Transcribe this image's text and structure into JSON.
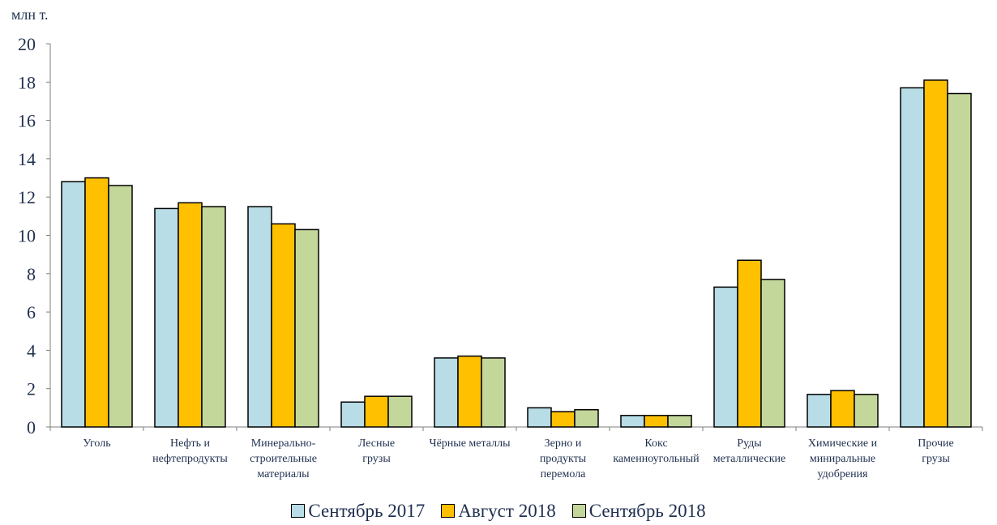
{
  "chart_data": {
    "type": "bar",
    "ylabel": "млн т.",
    "ylim": [
      0,
      20
    ],
    "yticks": [
      0,
      2,
      4,
      6,
      8,
      10,
      12,
      14,
      16,
      18,
      20
    ],
    "grid": false,
    "legend_position": "bottom",
    "categories": [
      [
        "Уголь"
      ],
      [
        "Нефть и",
        "нефтепродукты"
      ],
      [
        "Минерально-",
        "строительные",
        "материалы"
      ],
      [
        "Лесные",
        "грузы"
      ],
      [
        "Чёрные металлы"
      ],
      [
        "Зерно и",
        "продукты",
        "перемола"
      ],
      [
        "Кокс",
        "каменноугольный"
      ],
      [
        "Руды",
        "металлические"
      ],
      [
        "Химические и",
        "миниральные",
        "удобрения"
      ],
      [
        "Прочие",
        "грузы"
      ]
    ],
    "series": [
      {
        "name": "Сентябрь 2017",
        "color": "#b8dde6",
        "values": [
          12.8,
          11.4,
          11.5,
          1.3,
          3.6,
          1.0,
          0.6,
          7.3,
          1.7,
          17.7
        ]
      },
      {
        "name": "Август 2018",
        "color": "#ffc000",
        "values": [
          13.0,
          11.7,
          10.6,
          1.6,
          3.7,
          0.8,
          0.6,
          8.7,
          1.9,
          18.1
        ]
      },
      {
        "name": "Сентябрь 2018",
        "color": "#c4d79b",
        "values": [
          12.6,
          11.5,
          10.3,
          1.6,
          3.6,
          0.9,
          0.6,
          7.7,
          1.7,
          17.4
        ]
      }
    ]
  }
}
